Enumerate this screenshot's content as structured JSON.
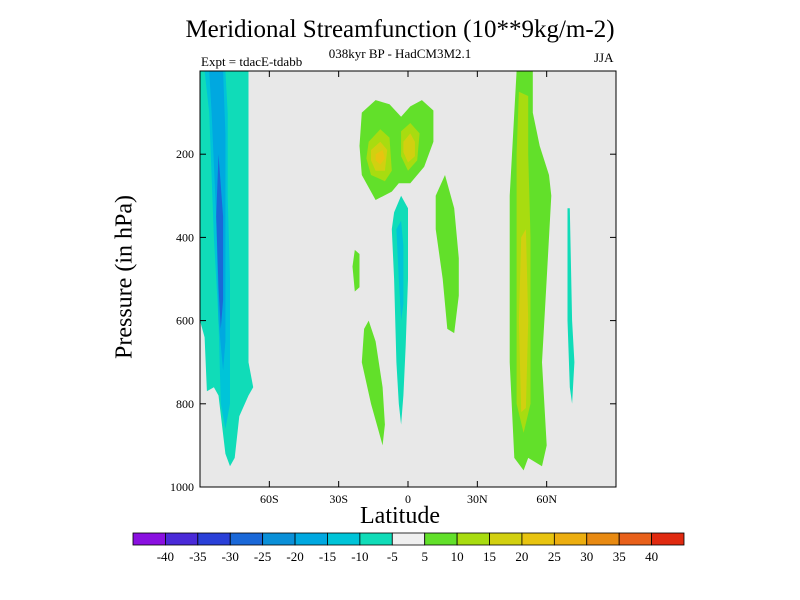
{
  "chart_data": {
    "type": "heatmap",
    "title": "Meridional Streamfunction (10**9kg/m-2)",
    "subtitle": "038kyr BP - HadCM3M2.1",
    "left_string": "Expt = tdacE-tdabb",
    "right_string": "JJA",
    "xlabel": "Latitude",
    "ylabel": "Pressure (in hPa)",
    "xlim": [
      -90,
      90
    ],
    "ylim": [
      1000,
      0
    ],
    "x_ticks": [
      {
        "value": -60,
        "label": "60S"
      },
      {
        "value": -30,
        "label": "30S"
      },
      {
        "value": 0,
        "label": "0"
      },
      {
        "value": 30,
        "label": "30N"
      },
      {
        "value": 60,
        "label": "60N"
      }
    ],
    "y_ticks": [
      {
        "value": 200,
        "label": "200"
      },
      {
        "value": 400,
        "label": "400"
      },
      {
        "value": 600,
        "label": "600"
      },
      {
        "value": 800,
        "label": "800"
      },
      {
        "value": 1000,
        "label": "1000"
      }
    ],
    "background_color": "#e8e8e8",
    "colorbar": {
      "levels": [
        "-40",
        "-35",
        "-30",
        "-25",
        "-20",
        "-15",
        "-10",
        "-5",
        "5",
        "10",
        "15",
        "20",
        "25",
        "30",
        "35",
        "40"
      ],
      "colors": [
        "#8a10e0",
        "#4a2ad8",
        "#2a40d8",
        "#1a68d8",
        "#0a90d8",
        "#00a8e0",
        "#00c4d8",
        "#10dcb8",
        "#f0f0f0",
        "#62e02a",
        "#a8dc10",
        "#d2d010",
        "#e8c410",
        "#ecae10",
        "#e88a12",
        "#e8601a",
        "#e02a10"
      ]
    },
    "features": [
      {
        "name": "southern-negative-cell",
        "sign": "negative",
        "layers": [
          {
            "level": -5,
            "color": "#10dcb8",
            "pts": [
              [
                -90,
                0
              ],
              [
                -69,
                0
              ],
              [
                -69,
                700
              ],
              [
                -67,
                760
              ],
              [
                -69,
                780
              ],
              [
                -73,
                830
              ],
              [
                -75,
                930
              ],
              [
                -77,
                950
              ],
              [
                -79,
                920
              ],
              [
                -82,
                780
              ],
              [
                -84,
                760
              ],
              [
                -87,
                770
              ],
              [
                -88,
                640
              ],
              [
                -90,
                600
              ]
            ]
          },
          {
            "level": -10,
            "color": "#00c4d8",
            "pts": [
              [
                -88,
                0
              ],
              [
                -79,
                0
              ],
              [
                -78,
                100
              ],
              [
                -78,
                300
              ],
              [
                -77,
                500
              ],
              [
                -77,
                800
              ],
              [
                -79,
                860
              ],
              [
                -81,
                800
              ],
              [
                -82,
                600
              ],
              [
                -84,
                400
              ],
              [
                -86,
                100
              ]
            ]
          },
          {
            "level": -15,
            "color": "#00a8e0",
            "pts": [
              [
                -86,
                0
              ],
              [
                -80,
                0
              ],
              [
                -79,
                150
              ],
              [
                -79,
                400
              ],
              [
                -79,
                650
              ],
              [
                -80,
                720
              ],
              [
                -82,
                600
              ],
              [
                -83,
                350
              ],
              [
                -85,
                100
              ]
            ]
          },
          {
            "level": -20,
            "color": "#1a68d8",
            "pts": [
              [
                -82,
                200
              ],
              [
                -80,
                350
              ],
              [
                -80,
                550
              ],
              [
                -81,
                620
              ],
              [
                -82,
                520
              ],
              [
                -83,
                350
              ]
            ]
          }
        ]
      },
      {
        "name": "tropical-positive-cells",
        "sign": "positive",
        "layers": [
          {
            "level": 5,
            "color": "#62e02a",
            "pts": [
              [
                -20,
                100
              ],
              [
                -14,
                70
              ],
              [
                -8,
                80
              ],
              [
                -3,
                110
              ],
              [
                1,
                85
              ],
              [
                6,
                70
              ],
              [
                11,
                95
              ],
              [
                11,
                170
              ],
              [
                7,
                230
              ],
              [
                1,
                270
              ],
              [
                -4,
                270
              ],
              [
                -7,
                290
              ],
              [
                -14,
                310
              ],
              [
                -20,
                250
              ],
              [
                -21,
                180
              ]
            ]
          },
          {
            "level": 10,
            "color": "#a8dc10",
            "pts": [
              [
                -17,
                170
              ],
              [
                -12,
                140
              ],
              [
                -8,
                160
              ],
              [
                -7,
                240
              ],
              [
                -10,
                265
              ],
              [
                -16,
                250
              ],
              [
                -18,
                210
              ]
            ]
          },
          {
            "level": 10,
            "color": "#a8dc10",
            "pts": [
              [
                -3,
                145
              ],
              [
                1,
                125
              ],
              [
                5,
                150
              ],
              [
                4,
                215
              ],
              [
                0,
                240
              ],
              [
                -3,
                205
              ]
            ]
          },
          {
            "level": 15,
            "color": "#d2d010",
            "pts": [
              [
                -16,
                190
              ],
              [
                -12,
                170
              ],
              [
                -9,
                190
              ],
              [
                -10,
                240
              ],
              [
                -14,
                240
              ],
              [
                -16,
                215
              ]
            ]
          },
          {
            "level": 15,
            "color": "#d2d010",
            "pts": [
              [
                -2,
                170
              ],
              [
                1,
                150
              ],
              [
                3,
                170
              ],
              [
                3,
                205
              ],
              [
                0,
                220
              ],
              [
                -2,
                195
              ]
            ]
          },
          {
            "level": 20,
            "color": "#e8c410",
            "pts": [
              [
                -14,
                200
              ],
              [
                -11,
                190
              ],
              [
                -10,
                210
              ],
              [
                -12,
                225
              ],
              [
                -14,
                215
              ]
            ]
          }
        ]
      },
      {
        "name": "equatorial-negative-cell",
        "sign": "negative",
        "layers": [
          {
            "level": -5,
            "color": "#10dcb8",
            "pts": [
              [
                -6,
                340
              ],
              [
                -3,
                300
              ],
              [
                0,
                330
              ],
              [
                0,
                500
              ],
              [
                -1,
                660
              ],
              [
                -2,
                780
              ],
              [
                -3,
                850
              ],
              [
                -4,
                800
              ],
              [
                -5,
                700
              ],
              [
                -6,
                500
              ],
              [
                -7,
                380
              ]
            ]
          },
          {
            "level": -10,
            "color": "#00c4d8",
            "pts": [
              [
                -5,
                380
              ],
              [
                -3,
                360
              ],
              [
                -2,
                420
              ],
              [
                -2,
                560
              ],
              [
                -3,
                600
              ],
              [
                -4,
                500
              ]
            ]
          }
        ]
      },
      {
        "name": "small-positive-patches",
        "sign": "positive",
        "layers": [
          {
            "level": 5,
            "color": "#62e02a",
            "pts": [
              [
                -19,
                620
              ],
              [
                -17,
                600
              ],
              [
                -14,
                650
              ],
              [
                -11,
                760
              ],
              [
                -10,
                850
              ],
              [
                -11,
                900
              ],
              [
                -13,
                860
              ],
              [
                -16,
                800
              ],
              [
                -18,
                750
              ],
              [
                -20,
                700
              ]
            ]
          },
          {
            "level": 5,
            "color": "#62e02a",
            "pts": [
              [
                -23,
                430
              ],
              [
                -21,
                440
              ],
              [
                -21,
                520
              ],
              [
                -23,
                530
              ],
              [
                -24,
                470
              ]
            ]
          },
          {
            "level": 5,
            "color": "#62e02a",
            "pts": [
              [
                12,
                300
              ],
              [
                16,
                250
              ],
              [
                20,
                330
              ],
              [
                22,
                450
              ],
              [
                22,
                540
              ],
              [
                20,
                630
              ],
              [
                17,
                620
              ],
              [
                15,
                500
              ],
              [
                12,
                380
              ]
            ]
          }
        ]
      },
      {
        "name": "northern-positive-cell",
        "sign": "positive",
        "layers": [
          {
            "level": 5,
            "color": "#62e02a",
            "pts": [
              [
                47,
                0
              ],
              [
                54,
                0
              ],
              [
                54,
                100
              ],
              [
                57,
                180
              ],
              [
                61,
                250
              ],
              [
                62,
                300
              ],
              [
                60,
                500
              ],
              [
                58,
                700
              ],
              [
                60,
                900
              ],
              [
                58,
                950
              ],
              [
                52,
                930
              ],
              [
                50,
                960
              ],
              [
                46,
                930
              ],
              [
                44,
                700
              ],
              [
                44,
                300
              ],
              [
                46,
                100
              ]
            ]
          },
          {
            "level": 10,
            "color": "#a8dc10",
            "pts": [
              [
                48,
                50
              ],
              [
                52,
                60
              ],
              [
                52,
                200
              ],
              [
                53,
                400
              ],
              [
                53,
                600
              ],
              [
                53,
                800
              ],
              [
                50,
                870
              ],
              [
                47,
                800
              ],
              [
                47,
                600
              ],
              [
                47,
                400
              ],
              [
                47,
                200
              ]
            ]
          },
          {
            "level": 15,
            "color": "#d2d010",
            "pts": [
              [
                49,
                400
              ],
              [
                51,
                380
              ],
              [
                52,
                600
              ],
              [
                51,
                810
              ],
              [
                49,
                820
              ],
              [
                48,
                600
              ]
            ]
          }
        ]
      },
      {
        "name": "northern-negative-sliver",
        "sign": "negative",
        "layers": [
          {
            "level": -5,
            "color": "#10dcb8",
            "pts": [
              [
                69,
                330
              ],
              [
                70,
                330
              ],
              [
                71,
                600
              ],
              [
                72,
                700
              ],
              [
                71,
                800
              ],
              [
                70,
                760
              ],
              [
                69,
                600
              ]
            ]
          }
        ]
      }
    ]
  }
}
